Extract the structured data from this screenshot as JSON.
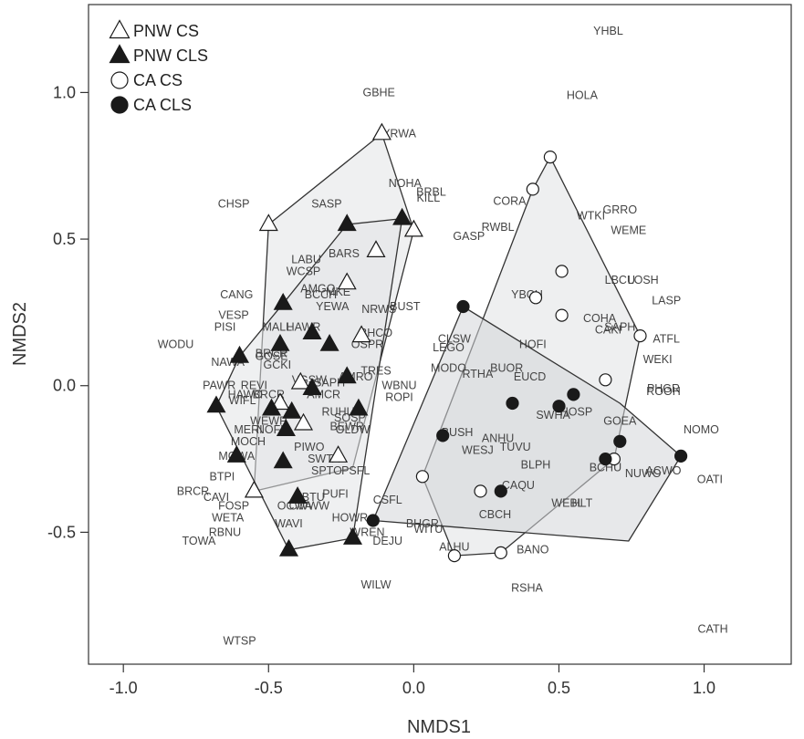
{
  "chart_data": {
    "type": "scatter",
    "title": "",
    "xlabel": "NMDS1",
    "ylabel": "NMDS2",
    "xlim": [
      -1.12,
      1.3
    ],
    "ylim": [
      -0.95,
      1.3
    ],
    "xticks": [
      -1.0,
      -0.5,
      0.0,
      0.5,
      1.0
    ],
    "xtick_labels": [
      "-1.0",
      "-0.5",
      "0.0",
      "0.5",
      "1.0"
    ],
    "yticks": [
      -0.5,
      0.0,
      0.5,
      1.0
    ],
    "ytick_labels": [
      "-0.5",
      "0.0",
      "0.5",
      "1.0"
    ],
    "grid": false,
    "legend_position": "top-left",
    "legend": [
      {
        "label": "PNW CS",
        "marker": "open-triangle"
      },
      {
        "label": "PNW CLS",
        "marker": "filled-triangle"
      },
      {
        "label": "CA CS",
        "marker": "open-circle"
      },
      {
        "label": "CA CLS",
        "marker": "filled-circle"
      }
    ],
    "colors": {
      "frame": "#333333",
      "marker": "#1a1a1a",
      "hull_fill": "#e2e4e6",
      "hull_fill_alt": "#d4d6d8",
      "species_text": "#444444"
    },
    "series": [
      {
        "name": "PNW CS",
        "marker": "open-triangle",
        "points": [
          [
            -0.11,
            0.86
          ],
          [
            -0.5,
            0.55
          ],
          [
            0.0,
            0.53
          ],
          [
            -0.13,
            0.46
          ],
          [
            -0.23,
            0.35
          ],
          [
            -0.18,
            0.17
          ],
          [
            -0.39,
            0.01
          ],
          [
            -0.46,
            -0.06
          ],
          [
            -0.38,
            -0.13
          ],
          [
            -0.26,
            -0.24
          ],
          [
            -0.55,
            -0.36
          ]
        ]
      },
      {
        "name": "PNW CLS",
        "marker": "filled-triangle",
        "points": [
          [
            -0.23,
            0.55
          ],
          [
            -0.04,
            0.57
          ],
          [
            -0.45,
            0.28
          ],
          [
            -0.35,
            0.18
          ],
          [
            -0.29,
            0.14
          ],
          [
            -0.46,
            0.14
          ],
          [
            -0.6,
            0.1
          ],
          [
            -0.23,
            0.03
          ],
          [
            -0.35,
            -0.01
          ],
          [
            -0.42,
            -0.09
          ],
          [
            -0.49,
            -0.08
          ],
          [
            -0.19,
            -0.08
          ],
          [
            -0.68,
            -0.07
          ],
          [
            -0.44,
            -0.15
          ],
          [
            -0.61,
            -0.24
          ],
          [
            -0.45,
            -0.26
          ],
          [
            -0.4,
            -0.38
          ],
          [
            -0.43,
            -0.56
          ],
          [
            -0.21,
            -0.52
          ]
        ]
      },
      {
        "name": "CA CS",
        "marker": "open-circle",
        "points": [
          [
            0.47,
            0.78
          ],
          [
            0.41,
            0.67
          ],
          [
            0.51,
            0.39
          ],
          [
            0.42,
            0.3
          ],
          [
            0.51,
            0.24
          ],
          [
            0.78,
            0.17
          ],
          [
            0.66,
            0.02
          ],
          [
            0.69,
            -0.25
          ],
          [
            0.03,
            -0.31
          ],
          [
            0.23,
            -0.36
          ],
          [
            0.3,
            -0.57
          ],
          [
            0.14,
            -0.58
          ]
        ]
      },
      {
        "name": "CA CLS",
        "marker": "filled-circle",
        "points": [
          [
            0.17,
            0.27
          ],
          [
            0.55,
            -0.03
          ],
          [
            0.34,
            -0.06
          ],
          [
            0.5,
            -0.07
          ],
          [
            0.1,
            -0.17
          ],
          [
            0.71,
            -0.19
          ],
          [
            0.92,
            -0.24
          ],
          [
            0.66,
            -0.25
          ],
          [
            0.3,
            -0.36
          ],
          [
            -0.14,
            -0.46
          ]
        ]
      }
    ],
    "hulls": [
      {
        "name": "PNW CS",
        "points": [
          [
            -0.11,
            0.86
          ],
          [
            0.0,
            0.53
          ],
          [
            -0.21,
            -0.28
          ],
          [
            -0.55,
            -0.36
          ],
          [
            -0.5,
            0.55
          ]
        ]
      },
      {
        "name": "PNW CLS",
        "points": [
          [
            -0.04,
            0.57
          ],
          [
            -0.21,
            -0.52
          ],
          [
            -0.43,
            -0.56
          ],
          [
            -0.68,
            -0.07
          ],
          [
            -0.6,
            0.1
          ],
          [
            -0.45,
            0.28
          ],
          [
            -0.23,
            0.55
          ]
        ]
      },
      {
        "name": "CA CS",
        "points": [
          [
            0.47,
            0.78
          ],
          [
            0.78,
            0.17
          ],
          [
            0.69,
            -0.25
          ],
          [
            0.3,
            -0.57
          ],
          [
            0.14,
            -0.58
          ],
          [
            0.03,
            -0.31
          ],
          [
            0.41,
            0.67
          ]
        ]
      },
      {
        "name": "CA CLS",
        "points": [
          [
            0.17,
            0.27
          ],
          [
            0.71,
            -0.06
          ],
          [
            0.92,
            -0.24
          ],
          [
            0.74,
            -0.53
          ],
          [
            -0.14,
            -0.46
          ]
        ]
      }
    ],
    "species_labels": [
      {
        "text": "YHBL",
        "x": 0.67,
        "y": 1.21
      },
      {
        "text": "GBHE",
        "x": -0.12,
        "y": 1.0
      },
      {
        "text": "HOLA",
        "x": 0.58,
        "y": 0.99
      },
      {
        "text": "YRWA",
        "x": -0.05,
        "y": 0.86
      },
      {
        "text": "NOHA",
        "x": -0.03,
        "y": 0.69
      },
      {
        "text": "BRBL",
        "x": 0.06,
        "y": 0.66
      },
      {
        "text": "KILL",
        "x": 0.05,
        "y": 0.64
      },
      {
        "text": "CORA",
        "x": 0.33,
        "y": 0.63
      },
      {
        "text": "GRRO",
        "x": 0.71,
        "y": 0.6
      },
      {
        "text": "WTKI",
        "x": 0.61,
        "y": 0.58
      },
      {
        "text": "CHSP",
        "x": -0.62,
        "y": 0.62
      },
      {
        "text": "SASP",
        "x": -0.3,
        "y": 0.62
      },
      {
        "text": "RWBL",
        "x": 0.29,
        "y": 0.54
      },
      {
        "text": "GASP",
        "x": 0.19,
        "y": 0.51
      },
      {
        "text": "WEME",
        "x": 0.74,
        "y": 0.53
      },
      {
        "text": "BARS",
        "x": -0.24,
        "y": 0.45
      },
      {
        "text": "LABU",
        "x": -0.37,
        "y": 0.43
      },
      {
        "text": "WCSP",
        "x": -0.38,
        "y": 0.39
      },
      {
        "text": "LBCU",
        "x": 0.71,
        "y": 0.36
      },
      {
        "text": "LOSH",
        "x": 0.79,
        "y": 0.36
      },
      {
        "text": "CANG",
        "x": -0.61,
        "y": 0.31
      },
      {
        "text": "AMGO",
        "x": -0.33,
        "y": 0.33
      },
      {
        "text": "MKE",
        "x": -0.26,
        "y": 0.32
      },
      {
        "text": "BCCH",
        "x": -0.32,
        "y": 0.31
      },
      {
        "text": "YBCH",
        "x": 0.39,
        "y": 0.31
      },
      {
        "text": "LASP",
        "x": 0.87,
        "y": 0.29
      },
      {
        "text": "YEWA",
        "x": -0.28,
        "y": 0.27
      },
      {
        "text": "NRWS",
        "x": -0.12,
        "y": 0.26
      },
      {
        "text": "BUST",
        "x": -0.03,
        "y": 0.27
      },
      {
        "text": "VESP",
        "x": -0.62,
        "y": 0.24
      },
      {
        "text": "PISI",
        "x": -0.65,
        "y": 0.2
      },
      {
        "text": "MALL",
        "x": -0.47,
        "y": 0.2
      },
      {
        "text": "HAWR",
        "x": -0.38,
        "y": 0.2
      },
      {
        "text": "COHA",
        "x": 0.64,
        "y": 0.23
      },
      {
        "text": "SAPH",
        "x": 0.71,
        "y": 0.2
      },
      {
        "text": "CAKI",
        "x": 0.67,
        "y": 0.19
      },
      {
        "text": "BHCO",
        "x": -0.13,
        "y": 0.18
      },
      {
        "text": "ATFL",
        "x": 0.87,
        "y": 0.16
      },
      {
        "text": "WODU",
        "x": -0.82,
        "y": 0.14
      },
      {
        "text": "OSPR",
        "x": -0.16,
        "y": 0.14
      },
      {
        "text": "CLSW",
        "x": 0.14,
        "y": 0.16
      },
      {
        "text": "LEGO",
        "x": 0.12,
        "y": 0.13
      },
      {
        "text": "HOFI",
        "x": 0.41,
        "y": 0.14
      },
      {
        "text": "BRCR",
        "x": -0.49,
        "y": 0.11
      },
      {
        "text": "GCKI",
        "x": -0.47,
        "y": 0.07
      },
      {
        "text": "GOSE",
        "x": -0.49,
        "y": 0.1
      },
      {
        "text": "NAWA",
        "x": -0.64,
        "y": 0.08
      },
      {
        "text": "WEKI",
        "x": 0.84,
        "y": 0.09
      },
      {
        "text": "TRES",
        "x": -0.13,
        "y": 0.05
      },
      {
        "text": "MODO",
        "x": 0.12,
        "y": 0.06
      },
      {
        "text": "RTHA",
        "x": 0.22,
        "y": 0.04
      },
      {
        "text": "BUOR",
        "x": 0.32,
        "y": 0.06
      },
      {
        "text": "EUCD",
        "x": 0.4,
        "y": 0.03
      },
      {
        "text": "AMRO",
        "x": -0.2,
        "y": 0.03
      },
      {
        "text": "VGSW",
        "x": -0.36,
        "y": 0.02
      },
      {
        "text": "SAPH",
        "x": -0.29,
        "y": 0.01
      },
      {
        "text": "PAWR",
        "x": -0.67,
        "y": 0.0
      },
      {
        "text": "REVI",
        "x": -0.55,
        "y": 0.0
      },
      {
        "text": "PHGR",
        "x": 0.86,
        "y": -0.01
      },
      {
        "text": "ROOH",
        "x": 0.86,
        "y": -0.02
      },
      {
        "text": "WBNU",
        "x": -0.05,
        "y": 0.0
      },
      {
        "text": "HAWO",
        "x": -0.58,
        "y": -0.03
      },
      {
        "text": "BRCR",
        "x": -0.5,
        "y": -0.03
      },
      {
        "text": "AMCR",
        "x": -0.31,
        "y": -0.03
      },
      {
        "text": "ROPI",
        "x": -0.05,
        "y": -0.04
      },
      {
        "text": "WIFL",
        "x": -0.59,
        "y": -0.05
      },
      {
        "text": "RUHU",
        "x": -0.26,
        "y": -0.09
      },
      {
        "text": "HOSP",
        "x": 0.56,
        "y": -0.09
      },
      {
        "text": "SWHA",
        "x": 0.48,
        "y": -0.1
      },
      {
        "text": "SOSP",
        "x": -0.22,
        "y": -0.11
      },
      {
        "text": "GOEA",
        "x": 0.71,
        "y": -0.12
      },
      {
        "text": "WEWP",
        "x": -0.5,
        "y": -0.12
      },
      {
        "text": "NOMO",
        "x": 0.99,
        "y": -0.15
      },
      {
        "text": "MERI",
        "x": -0.57,
        "y": -0.15
      },
      {
        "text": "NOFL",
        "x": -0.49,
        "y": -0.15
      },
      {
        "text": "BEWR",
        "x": -0.23,
        "y": -0.14
      },
      {
        "text": "OLDW",
        "x": -0.21,
        "y": -0.15
      },
      {
        "text": "ANHU",
        "x": 0.29,
        "y": -0.18
      },
      {
        "text": "BUSH",
        "x": 0.15,
        "y": -0.16
      },
      {
        "text": "MOCH",
        "x": -0.57,
        "y": -0.19
      },
      {
        "text": "PIWO",
        "x": -0.36,
        "y": -0.21
      },
      {
        "text": "TUVU",
        "x": 0.35,
        "y": -0.21
      },
      {
        "text": "WESJ",
        "x": 0.22,
        "y": -0.22
      },
      {
        "text": "MGWA",
        "x": -0.61,
        "y": -0.24
      },
      {
        "text": "SWTA",
        "x": -0.31,
        "y": -0.25
      },
      {
        "text": "BLPH",
        "x": 0.42,
        "y": -0.27
      },
      {
        "text": "SPTO",
        "x": -0.3,
        "y": -0.29
      },
      {
        "text": "PSFL",
        "x": -0.2,
        "y": -0.29
      },
      {
        "text": "BCHU",
        "x": 0.66,
        "y": -0.28
      },
      {
        "text": "NUWO",
        "x": 0.79,
        "y": -0.3
      },
      {
        "text": "ACWO",
        "x": 0.86,
        "y": -0.29
      },
      {
        "text": "OATI",
        "x": 1.02,
        "y": -0.32
      },
      {
        "text": "BTPI",
        "x": -0.66,
        "y": -0.31
      },
      {
        "text": "CAQU",
        "x": 0.36,
        "y": -0.34
      },
      {
        "text": "PUFI",
        "x": -0.27,
        "y": -0.37
      },
      {
        "text": "CSFL",
        "x": -0.09,
        "y": -0.39
      },
      {
        "text": "BRCR",
        "x": -0.76,
        "y": -0.36
      },
      {
        "text": "CAVI",
        "x": -0.68,
        "y": -0.38
      },
      {
        "text": "CBTU",
        "x": -0.36,
        "y": -0.38
      },
      {
        "text": "OCWA",
        "x": -0.41,
        "y": -0.41
      },
      {
        "text": "CWWW",
        "x": -0.36,
        "y": -0.41
      },
      {
        "text": "WEBL",
        "x": 0.53,
        "y": -0.4
      },
      {
        "text": "HLT",
        "x": 0.58,
        "y": -0.4
      },
      {
        "text": "FOSP",
        "x": -0.62,
        "y": -0.41
      },
      {
        "text": "CBCH",
        "x": 0.28,
        "y": -0.44
      },
      {
        "text": "WETA",
        "x": -0.64,
        "y": -0.45
      },
      {
        "text": "HOWR",
        "x": -0.22,
        "y": -0.45
      },
      {
        "text": "BHGR",
        "x": 0.03,
        "y": -0.47
      },
      {
        "text": "WAVI",
        "x": -0.43,
        "y": -0.47
      },
      {
        "text": "WITU",
        "x": 0.05,
        "y": -0.49
      },
      {
        "text": "WREN",
        "x": -0.16,
        "y": -0.5
      },
      {
        "text": "RBNU",
        "x": -0.65,
        "y": -0.5
      },
      {
        "text": "DEJU",
        "x": -0.09,
        "y": -0.53
      },
      {
        "text": "TOWA",
        "x": -0.74,
        "y": -0.53
      },
      {
        "text": "ALHU",
        "x": 0.14,
        "y": -0.55
      },
      {
        "text": "BANO",
        "x": 0.41,
        "y": -0.56
      },
      {
        "text": "WILW",
        "x": -0.13,
        "y": -0.68
      },
      {
        "text": "RSHA",
        "x": 0.39,
        "y": -0.69
      },
      {
        "text": "CATH",
        "x": 1.03,
        "y": -0.83
      },
      {
        "text": "WTSP",
        "x": -0.6,
        "y": -0.87
      }
    ]
  }
}
